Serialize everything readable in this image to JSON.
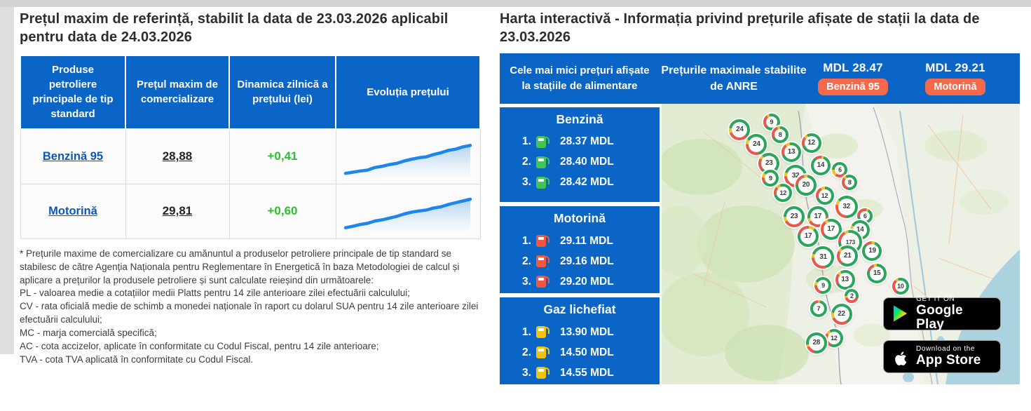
{
  "colors": {
    "accent_blue": "#0a65c7",
    "badge_orange": "#f4694c",
    "positive_green": "#2fbe2f",
    "link_blue": "#0c58b8",
    "spark_blue": "#1d86ee",
    "marker_green": "#2aa55c",
    "marker_red": "#e8594b",
    "marker_yellow": "#f2c12d",
    "sea_blue": "#aad3df"
  },
  "left": {
    "title": "Prețul maxim de referință, stabilit la data de 23.03.2026 aplicabil pentru data de 24.03.2026",
    "table": {
      "headers": [
        "Produse petroliere principale de tip standard",
        "Prețul maxim de comercializare",
        "Dinamica zilnică a prețului (lei)",
        "Evoluția prețului"
      ],
      "rows": [
        {
          "product": "Benzină 95",
          "price": "28,88",
          "delta": "+0,41"
        },
        {
          "product": "Motorină",
          "price": "29,81",
          "delta": "+0,60"
        }
      ]
    },
    "footnote": "* Prețurile maxime de comercializare cu amănuntul a produselor petroliere principale de tip standard se stabilesc de către Agenția Naționala pentru Reglementare în Energetică în baza Metodologiei de calcul și aplicare a prețurilor la produsele petroliere și sunt calculate reieșind din următoarele:\nPL - valoarea medie a cotațiilor medii Platts pentru 14 zile anterioare zilei efectuării calculului;\nCV - rata oficială medie de schimb a monedei naționale în raport cu dolarul SUA pentru 14 zile anterioare zilei efectuării calculului;\nMC - marja comercială specifică;\nAC - cota accizelor, aplicate în conformitate cu Codul Fiscal, pentru 14 zile anterioare;\nTVA - cota TVA aplicată în conformitate cu Codul Fiscal."
  },
  "right": {
    "title": "Harta interactivă - Informația privind prețurile afișate de stații la data de 23.03.2026",
    "header": {
      "smallest_prices_label": "Cele mai mici prețuri afișate la stațiile de alimentare",
      "max_prices_label": "Prețurile maximale stabilite de ANRE",
      "max_prices": [
        {
          "value": "MDL 28.47",
          "fuel": "Benzină 95"
        },
        {
          "value": "MDL 29.21",
          "fuel": "Motorină"
        }
      ]
    },
    "panels": [
      {
        "title": "Benzină",
        "pump_color": "#43c554",
        "items": [
          {
            "rank": "1.",
            "price": "28.37 MDL"
          },
          {
            "rank": "2.",
            "price": "28.40 MDL"
          },
          {
            "rank": "3.",
            "price": "28.42 MDL"
          }
        ]
      },
      {
        "title": "Motorină",
        "pump_color": "#f4573f",
        "items": [
          {
            "rank": "1.",
            "price": "29.11 MDL"
          },
          {
            "rank": "2.",
            "price": "29.16 MDL"
          },
          {
            "rank": "3.",
            "price": "29.20 MDL"
          }
        ]
      },
      {
        "title": "Gaz lichefiat",
        "pump_color": "#f2c40f",
        "items": [
          {
            "rank": "1.",
            "price": "13.90 MDL"
          },
          {
            "rank": "2.",
            "price": "14.50 MDL"
          },
          {
            "rank": "3.",
            "price": "14.55 MDL"
          }
        ]
      }
    ],
    "map": {
      "markers": [
        {
          "n": "24",
          "x": 21.8,
          "y": 9.3,
          "s": 30,
          "g": 58,
          "r": 34,
          "rot": -80
        },
        {
          "n": "9",
          "x": 30.7,
          "y": 6.5,
          "s": 24,
          "g": 70,
          "r": 25,
          "rot": -20
        },
        {
          "n": "8",
          "x": 33.1,
          "y": 11.0,
          "s": 24,
          "g": 68,
          "r": 26,
          "rot": 0
        },
        {
          "n": "24",
          "x": 26.5,
          "y": 14.5,
          "s": 30,
          "g": 62,
          "r": 30,
          "rot": -60
        },
        {
          "n": "12",
          "x": 41.8,
          "y": 14.0,
          "s": 28,
          "g": 78,
          "r": 16,
          "rot": -30
        },
        {
          "n": "13",
          "x": 36.2,
          "y": 17.3,
          "s": 28,
          "g": 72,
          "r": 20,
          "rot": -10
        },
        {
          "n": "23",
          "x": 30.0,
          "y": 21.3,
          "s": 30,
          "g": 74,
          "r": 20,
          "rot": -40
        },
        {
          "n": "14",
          "x": 44.4,
          "y": 22.0,
          "s": 28,
          "g": 84,
          "r": 12,
          "rot": 20
        },
        {
          "n": "9",
          "x": 30.4,
          "y": 26.5,
          "s": 24,
          "g": 80,
          "r": 10,
          "rot": -50
        },
        {
          "n": "32",
          "x": 37.4,
          "y": 25.8,
          "s": 32,
          "g": 66,
          "r": 28,
          "rot": -70
        },
        {
          "n": "20",
          "x": 40.3,
          "y": 29.0,
          "s": 30,
          "g": 72,
          "r": 22,
          "rot": 10
        },
        {
          "n": "6",
          "x": 49.8,
          "y": 23.5,
          "s": 22,
          "g": 60,
          "r": 25,
          "rot": -90
        },
        {
          "n": "8",
          "x": 52.5,
          "y": 28.0,
          "s": 22,
          "g": 62,
          "r": 32,
          "rot": -30
        },
        {
          "n": "12",
          "x": 33.9,
          "y": 31.8,
          "s": 26,
          "g": 76,
          "r": 16,
          "rot": -20
        },
        {
          "n": "12",
          "x": 45.5,
          "y": 32.8,
          "s": 26,
          "g": 70,
          "r": 22,
          "rot": 0
        },
        {
          "n": "32",
          "x": 51.6,
          "y": 36.8,
          "s": 32,
          "g": 64,
          "r": 28,
          "rot": -50
        },
        {
          "n": "23",
          "x": 37.0,
          "y": 40.3,
          "s": 30,
          "g": 60,
          "r": 32,
          "rot": -90
        },
        {
          "n": "17",
          "x": 43.6,
          "y": 40.3,
          "s": 30,
          "g": 52,
          "r": 42,
          "rot": -100
        },
        {
          "n": "6",
          "x": 56.8,
          "y": 40.0,
          "s": 22,
          "g": 66,
          "r": 30,
          "rot": 30
        },
        {
          "n": "17",
          "x": 47.3,
          "y": 44.8,
          "s": 30,
          "g": 70,
          "r": 24,
          "rot": -20
        },
        {
          "n": "14",
          "x": 55.4,
          "y": 45.0,
          "s": 28,
          "g": 64,
          "r": 30,
          "rot": -60
        },
        {
          "n": "17",
          "x": 40.9,
          "y": 47.3,
          "s": 30,
          "g": 68,
          "r": 22,
          "rot": 40
        },
        {
          "n": "173",
          "x": 52.7,
          "y": 49.3,
          "s": 34,
          "g": 78,
          "r": 16,
          "rot": -10
        },
        {
          "n": "19",
          "x": 58.8,
          "y": 52.5,
          "s": 28,
          "g": 82,
          "r": 12,
          "rot": 20
        },
        {
          "n": "31",
          "x": 45.1,
          "y": 54.8,
          "s": 32,
          "g": 64,
          "r": 30,
          "rot": -70
        },
        {
          "n": "21",
          "x": 51.9,
          "y": 54.3,
          "s": 30,
          "g": 72,
          "r": 22,
          "rot": -40
        },
        {
          "n": "15",
          "x": 60.1,
          "y": 60.5,
          "s": 28,
          "g": 80,
          "r": 14,
          "rot": 0
        },
        {
          "n": "13",
          "x": 51.2,
          "y": 62.8,
          "s": 28,
          "g": 76,
          "r": 18,
          "rot": -30
        },
        {
          "n": "9",
          "x": 45.1,
          "y": 64.8,
          "s": 24,
          "g": 72,
          "r": 20,
          "rot": -60
        },
        {
          "n": "10",
          "x": 66.7,
          "y": 65.0,
          "s": 24,
          "g": 64,
          "r": 30,
          "rot": -20
        },
        {
          "n": "2",
          "x": 53.1,
          "y": 68.5,
          "s": 20,
          "g": 55,
          "r": 40,
          "rot": -90
        },
        {
          "n": "7",
          "x": 43.8,
          "y": 73.0,
          "s": 24,
          "g": 88,
          "r": 8,
          "rot": 10
        },
        {
          "n": "22",
          "x": 50.2,
          "y": 75.0,
          "s": 30,
          "g": 62,
          "r": 28,
          "rot": -80
        },
        {
          "n": "12",
          "x": 48.1,
          "y": 83.5,
          "s": 26,
          "g": 66,
          "r": 26,
          "rot": -30
        },
        {
          "n": "28",
          "x": 43.2,
          "y": 85.3,
          "s": 30,
          "g": 82,
          "r": 14,
          "rot": -100
        }
      ],
      "store_badges": [
        {
          "tagline": "GET IT ON",
          "store": "Google Play"
        },
        {
          "tagline": "Download on the",
          "store": "App Store"
        }
      ]
    }
  },
  "chart_data": [
    {
      "type": "area",
      "title": "Evoluția prețului — Benzină 95",
      "xlabel": "",
      "ylabel": "",
      "values_norm": [
        0.02,
        0.06,
        0.1,
        0.13,
        0.22,
        0.26,
        0.32,
        0.36,
        0.44,
        0.5,
        0.55,
        0.58,
        0.66,
        0.72,
        0.8,
        0.84,
        0.92,
        0.97
      ]
    },
    {
      "type": "area",
      "title": "Evoluția prețului — Motorină",
      "xlabel": "",
      "ylabel": "",
      "values_norm": [
        0.03,
        0.08,
        0.14,
        0.18,
        0.26,
        0.3,
        0.36,
        0.42,
        0.5,
        0.56,
        0.6,
        0.63,
        0.7,
        0.74,
        0.82,
        0.88,
        0.94,
        1.0
      ]
    }
  ]
}
